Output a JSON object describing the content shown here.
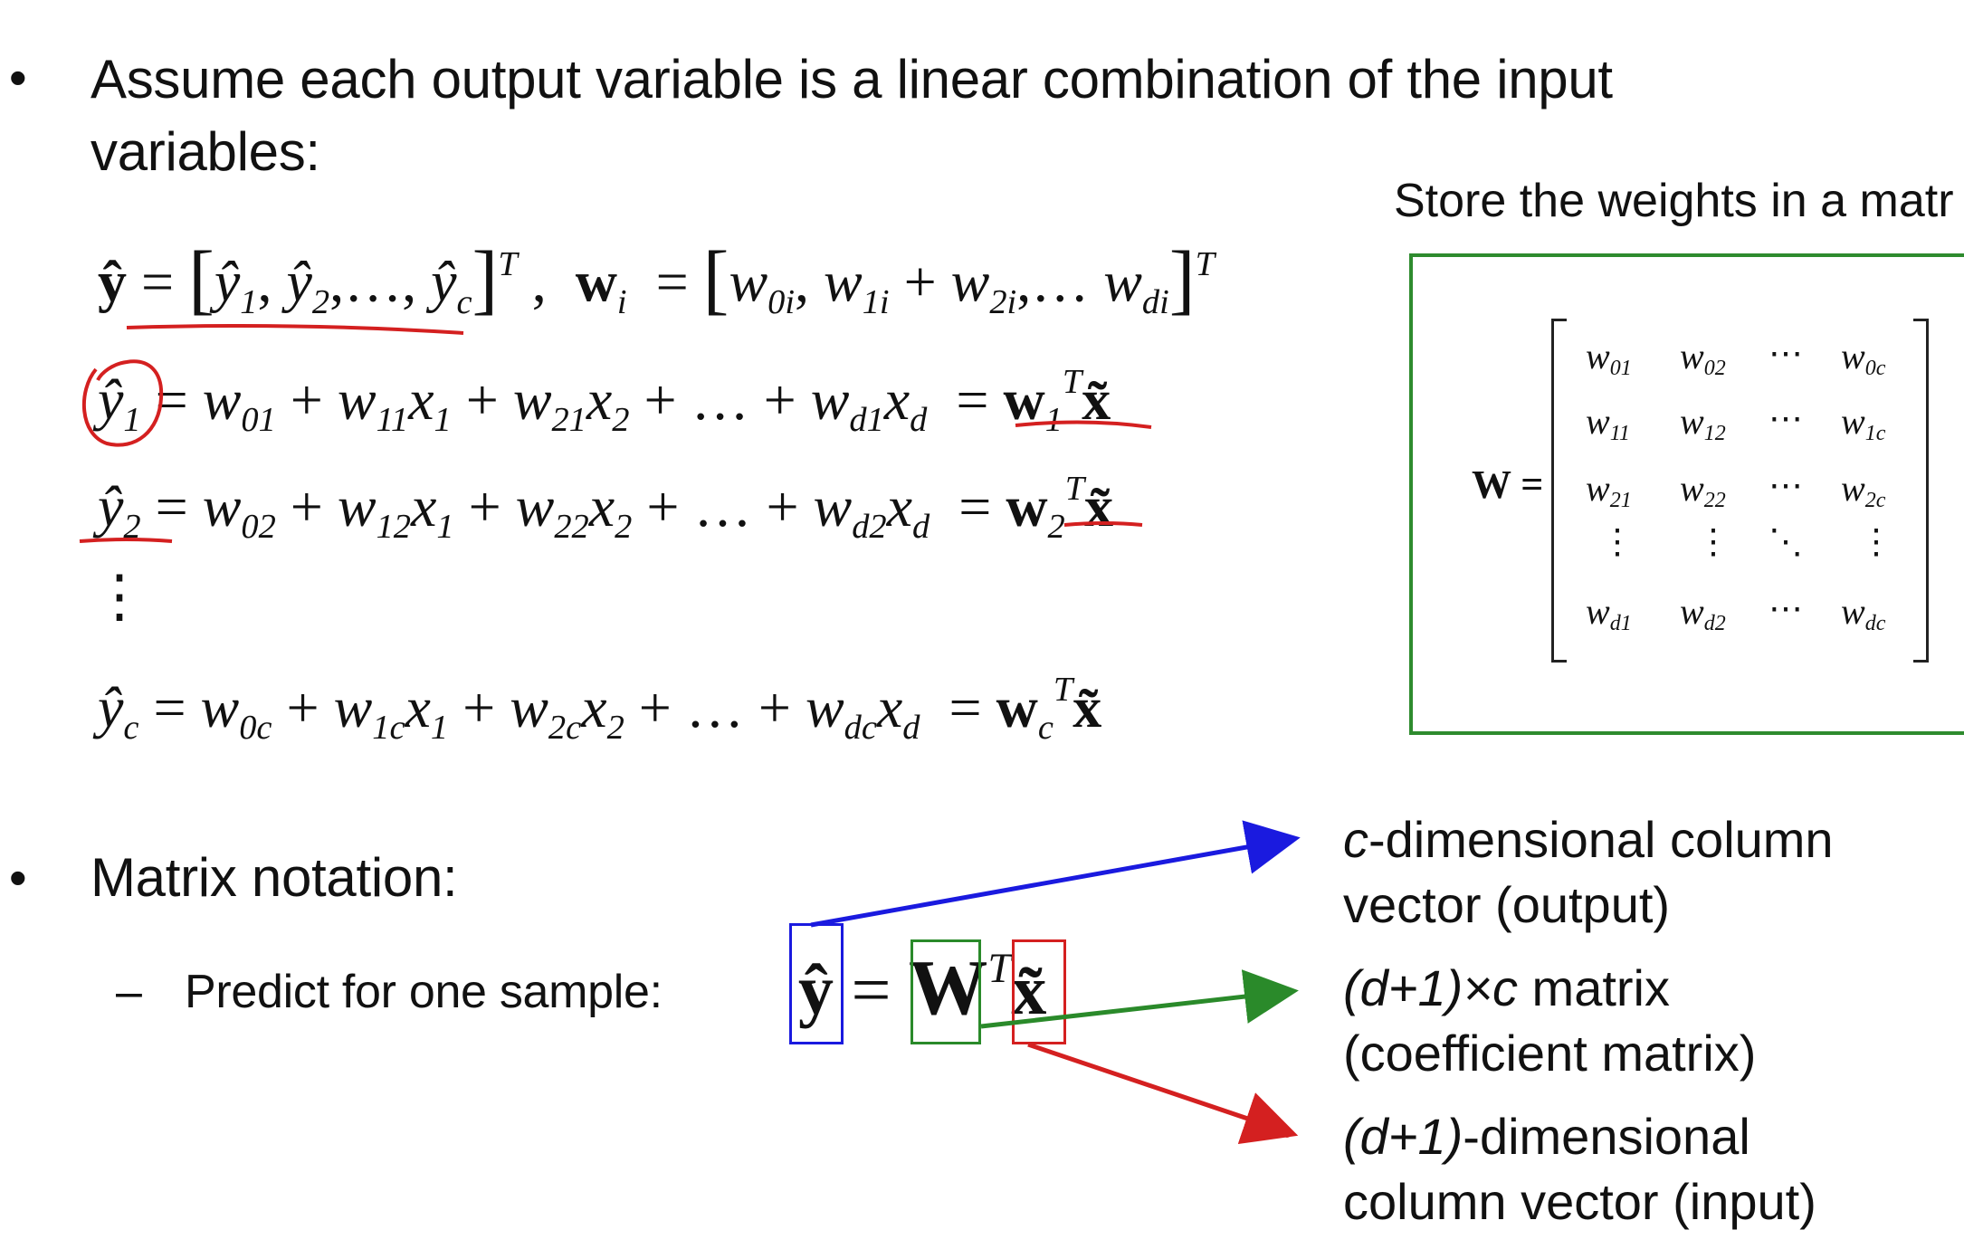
{
  "bullet_symbol": "•",
  "dash_symbol": "–",
  "intro": {
    "line1": "Assume each output variable is a linear combination of the input",
    "line2": "variables:"
  },
  "store_title": "Store the weights in a matr",
  "matrix": {
    "label": "W =",
    "rows": [
      [
        "w01",
        "w02",
        "⋯",
        "w0c"
      ],
      [
        "w11",
        "w12",
        "⋯",
        "w1c"
      ],
      [
        "w21",
        "w22",
        "⋯",
        "w2c"
      ],
      [
        "⋮",
        "⋮",
        "⋱",
        "⋮"
      ],
      [
        "wd1",
        "wd2",
        "⋯",
        "wdc"
      ]
    ]
  },
  "matrix_notation": {
    "heading": "Matrix notation:",
    "sub_item": "Predict for one sample:"
  },
  "annotations": {
    "output_label_1_italic": "c",
    "output_label_1": "-dimensional column",
    "output_label_2": "vector (output)",
    "coef_label_1_italic": "(d+1)×c",
    "coef_label_1": " matrix",
    "coef_label_2": "(coefficient matrix)",
    "input_label_1_italic": "(d+1)",
    "input_label_1": "-dimensional",
    "input_label_2": "column vector (input)"
  },
  "colors": {
    "output_arrow": "#1a1adf",
    "coef_arrow": "#2a8a2a",
    "input_arrow": "#d42020",
    "handwriting": "#d42020",
    "store_box": "#2e8b2e"
  }
}
